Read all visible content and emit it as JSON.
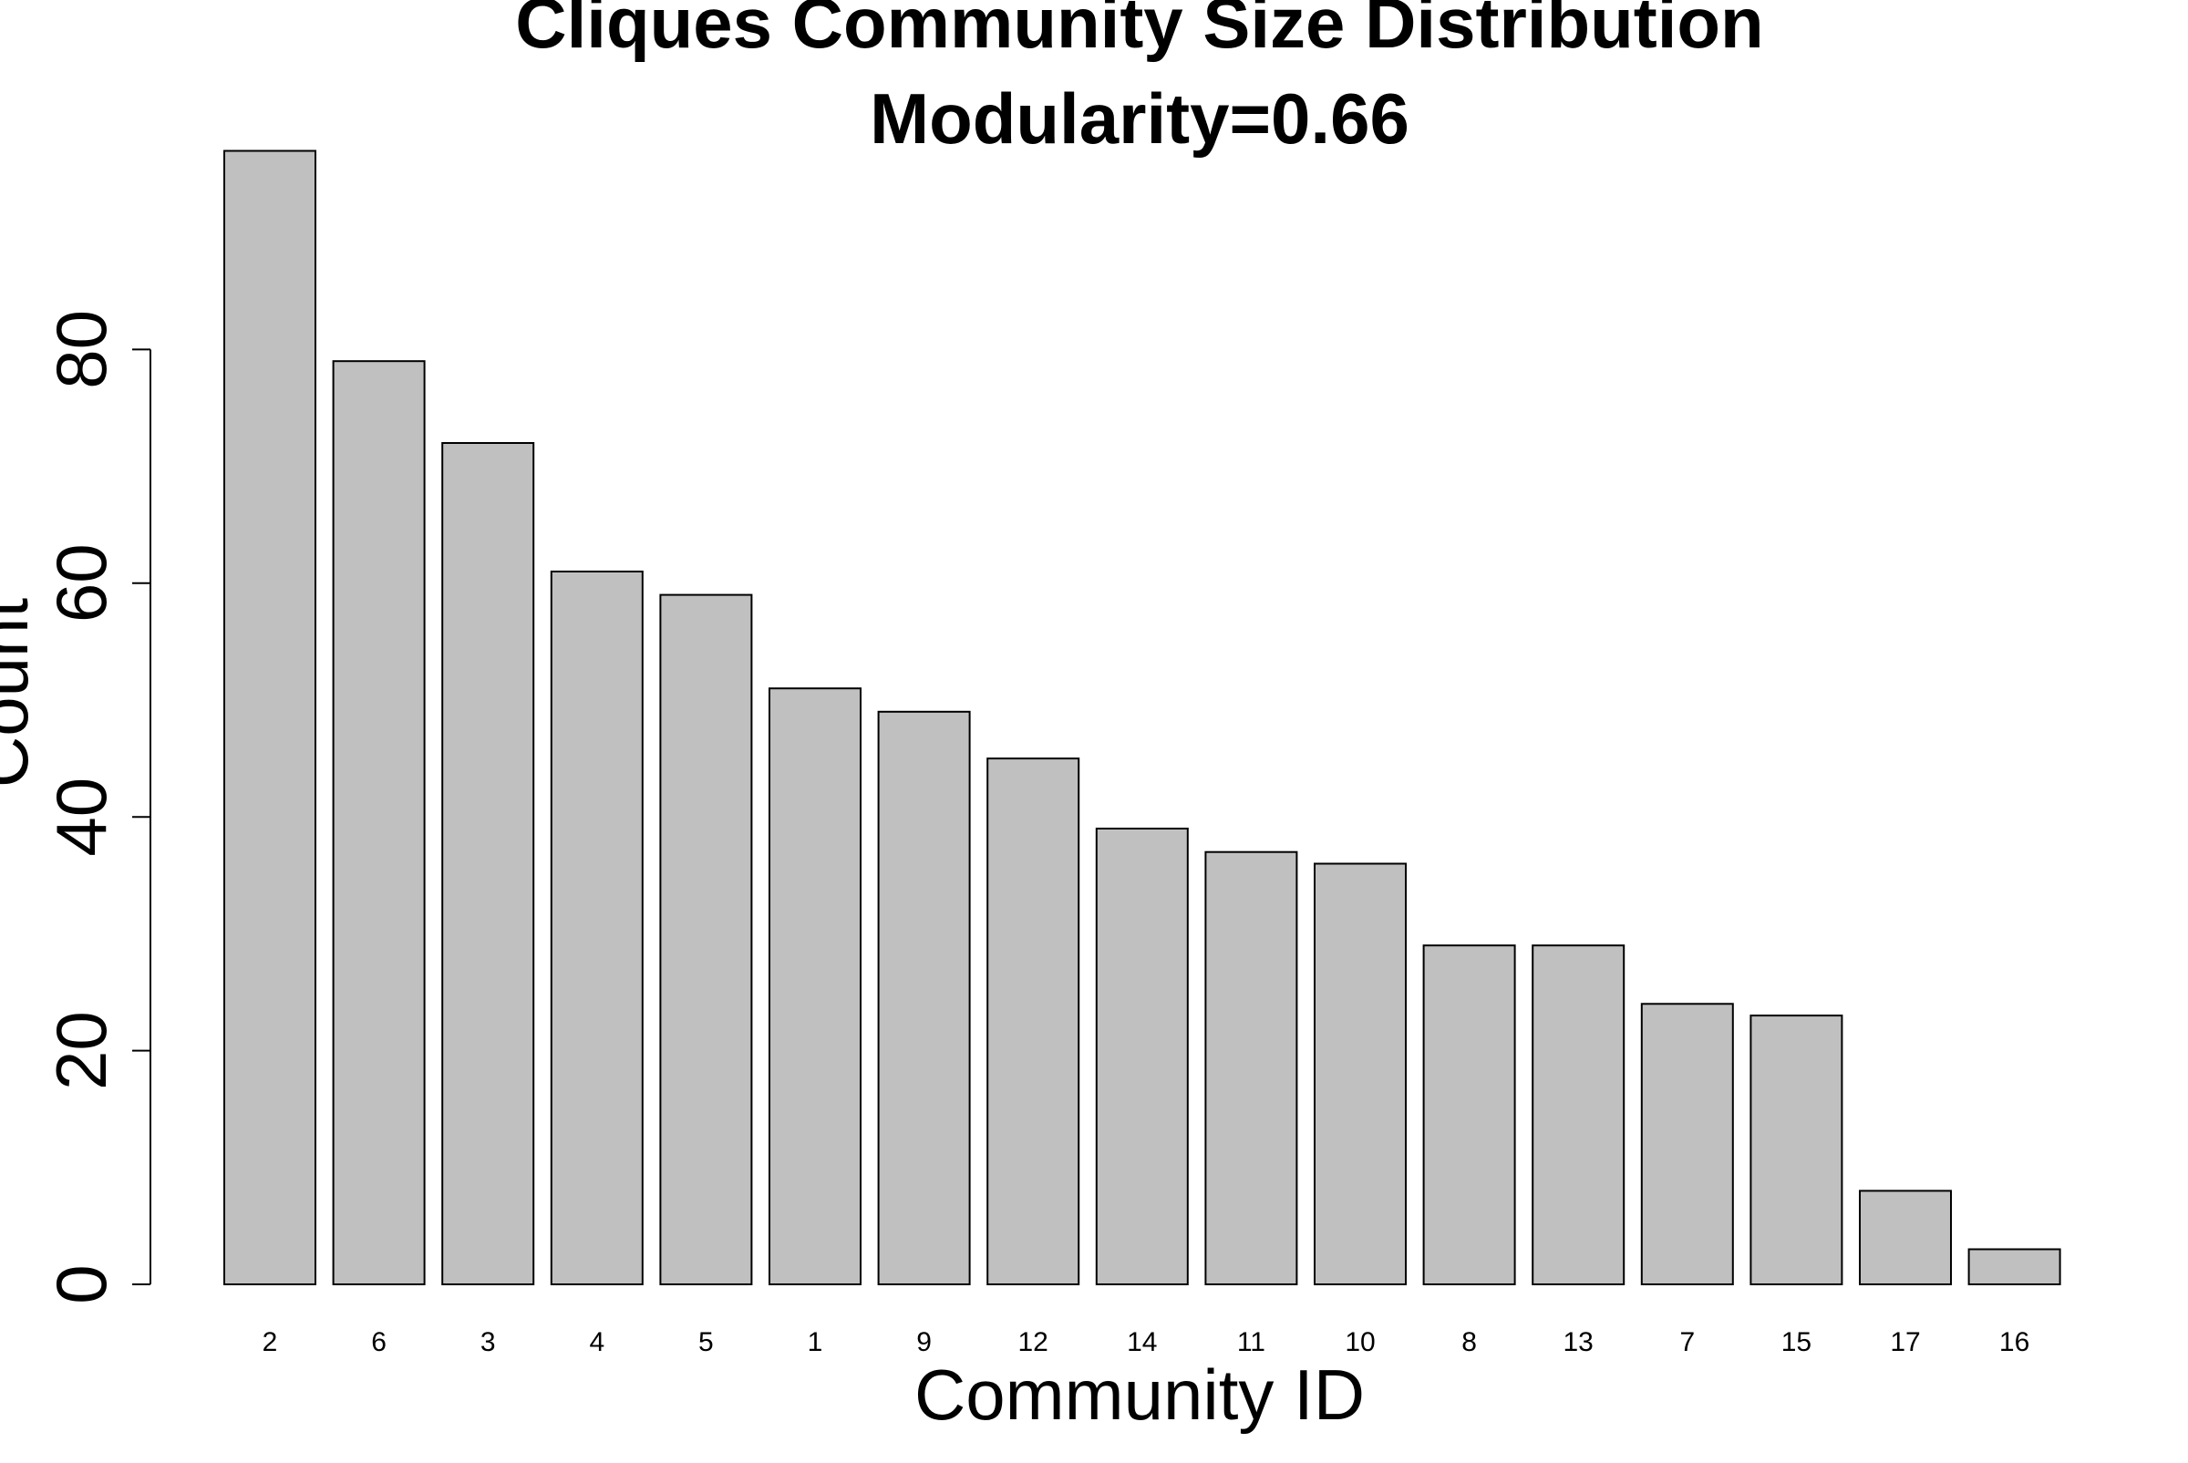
{
  "chart_data": {
    "type": "bar",
    "title": "Cliques Community Size Distribution",
    "subtitle": "Modularity=0.66",
    "xlabel": "Community ID",
    "ylabel": "Count",
    "categories": [
      "2",
      "6",
      "3",
      "4",
      "5",
      "1",
      "9",
      "12",
      "14",
      "11",
      "10",
      "8",
      "13",
      "7",
      "15",
      "17",
      "16"
    ],
    "values": [
      97,
      79,
      72,
      61,
      59,
      51,
      49,
      45,
      39,
      37,
      36,
      29,
      29,
      24,
      23,
      8,
      3
    ],
    "ylim": [
      0,
      97
    ],
    "yticks": [
      0,
      20,
      40,
      60,
      80
    ],
    "grid": false,
    "legend": "none",
    "colors": {
      "bar_fill": "#c0c0c0",
      "bar_stroke": "#000000",
      "text": "#000000"
    }
  }
}
